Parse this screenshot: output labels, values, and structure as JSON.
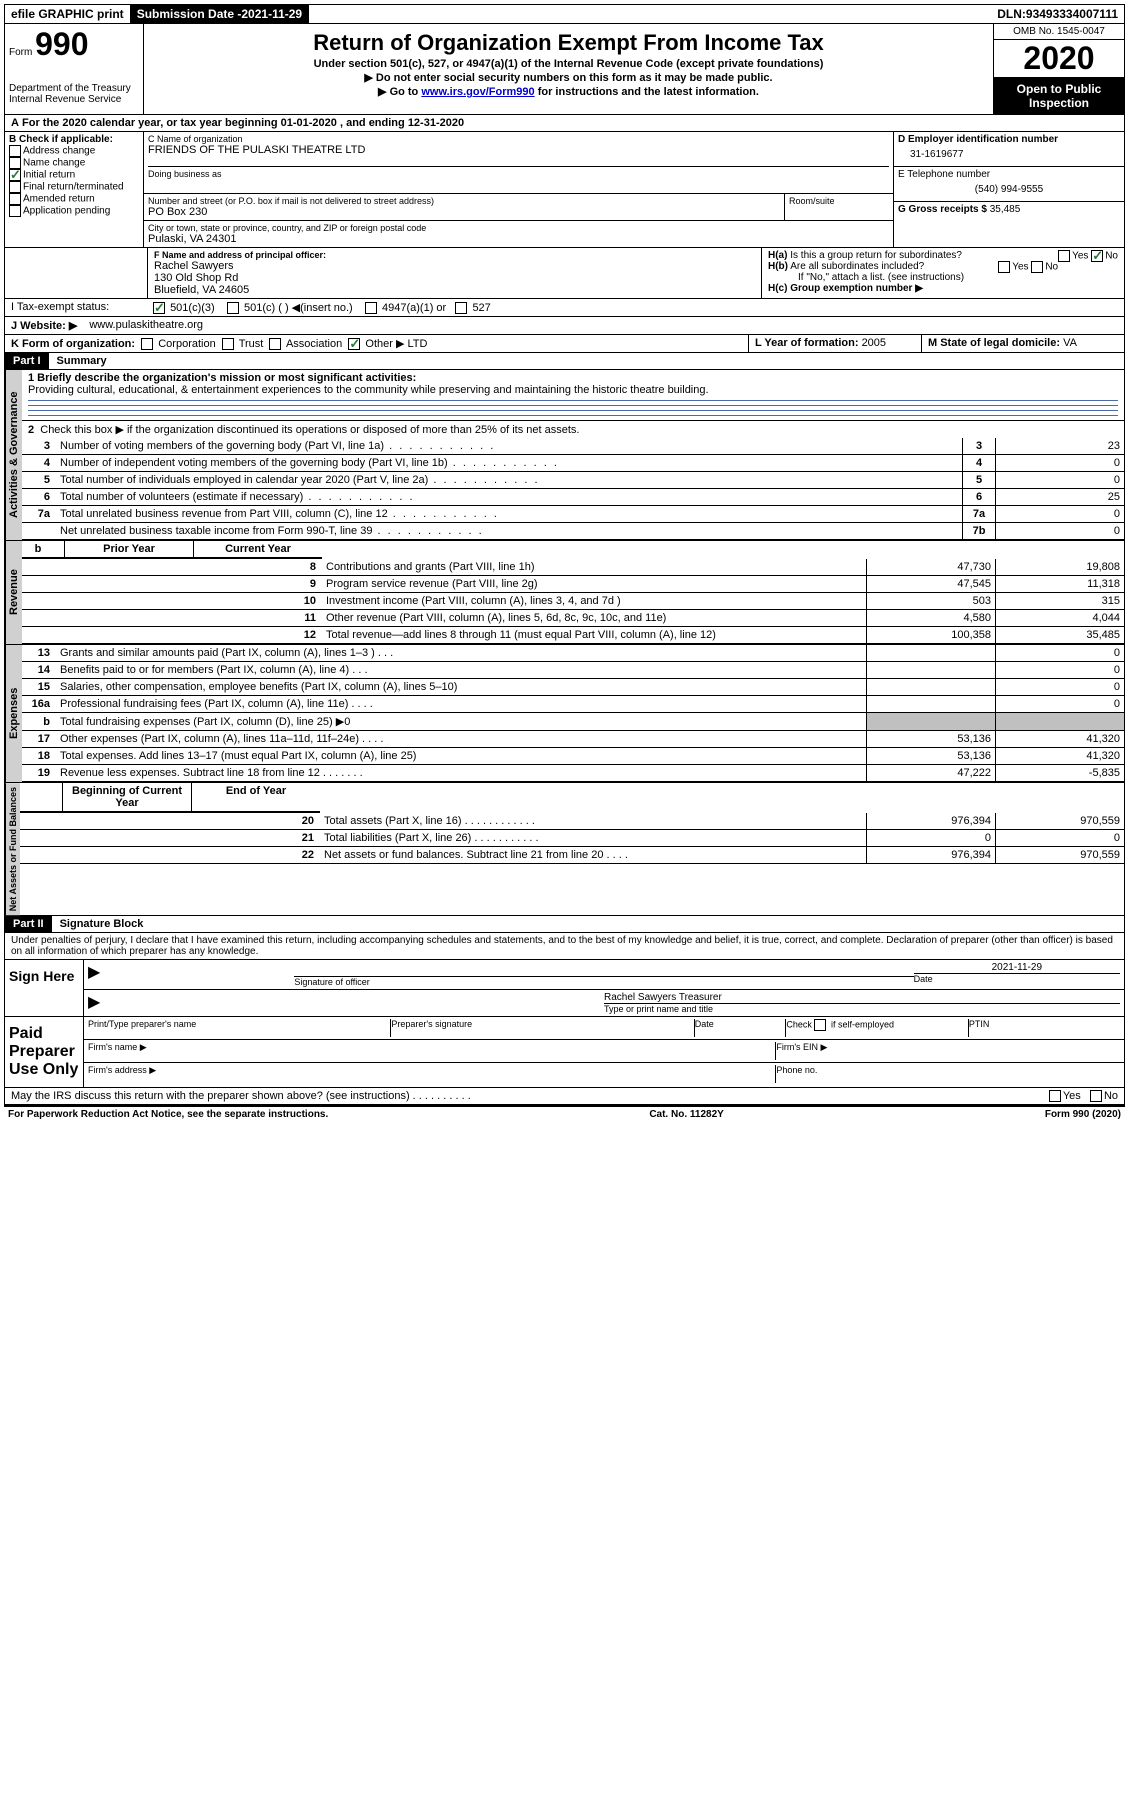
{
  "topbar": {
    "efile": "efile GRAPHIC print",
    "submission_label": "Submission Date - ",
    "submission_date": "2021-11-29",
    "dln_label": "DLN: ",
    "dln": "93493334007111"
  },
  "header": {
    "form_prefix": "Form",
    "form_number": "990",
    "dept": "Department of the Treasury",
    "irs": "Internal Revenue Service",
    "title": "Return of Organization Exempt From Income Tax",
    "sub1": "Under section 501(c), 527, or 4947(a)(1) of the Internal Revenue Code (except private foundations)",
    "sub2": "▶ Do not enter social security numbers on this form as it may be made public.",
    "sub3_pre": "▶ Go to ",
    "sub3_link": "www.irs.gov/Form990",
    "sub3_post": " for instructions and the latest information.",
    "omb": "OMB No. 1545-0047",
    "year": "2020",
    "open": "Open to Public Inspection"
  },
  "rowA": {
    "text_pre": "A",
    "text": " For the 2020 calendar year, or tax year beginning ",
    "begin": "01-01-2020",
    "mid": " , and ending ",
    "end": "12-31-2020"
  },
  "sectionB": {
    "b_label": "B Check if applicable:",
    "opts": [
      "Address change",
      "Name change",
      "Initial return",
      "Final return/terminated",
      "Amended return",
      "Application pending"
    ],
    "checked_index": 2,
    "c_name_label": "C Name of organization",
    "c_name": "FRIENDS OF THE PULASKI THEATRE LTD",
    "dba_label": "Doing business as",
    "dba": "",
    "addr_label": "Number and street (or P.O. box if mail is not delivered to street address)",
    "room_label": "Room/suite",
    "addr": "PO Box 230",
    "city_label": "City or town, state or province, country, and ZIP or foreign postal code",
    "city": "Pulaski, VA  24301",
    "d_label": "D Employer identification number",
    "d_value": "31-1619677",
    "e_label": "E Telephone number",
    "e_value": "(540) 994-9555",
    "g_label": "G Gross receipts $ ",
    "g_value": "35,485"
  },
  "sectionF": {
    "f_label": "F  Name and address of principal officer:",
    "name": "Rachel Sawyers",
    "addr1": "130 Old Shop Rd",
    "addr2": "Bluefield, VA  24605",
    "ha_label": "H(a)  Is this a group return for subordinates?",
    "ha_no_checked": true,
    "hb_label": "H(b)  Are all subordinates included?",
    "hb_note": "If \"No,\" attach a list. (see instructions)",
    "hc_label": "H(c)  Group exemption number ▶"
  },
  "rowI": {
    "label": "I    Tax-exempt status:",
    "opts": [
      "501(c)(3)",
      "501(c) (  ) ◀(insert no.)",
      "4947(a)(1) or",
      "527"
    ],
    "checked_index": 0
  },
  "rowJ": {
    "label": "J    Website: ▶",
    "value": "www.pulaskitheatre.org"
  },
  "rowK": {
    "label": "K Form of organization:",
    "opts": [
      "Corporation",
      "Trust",
      "Association",
      "Other ▶"
    ],
    "checked_index": 3,
    "other_value": "LTD",
    "l_label": "L Year of formation: ",
    "l_value": "2005",
    "m_label": "M State of legal domicile: ",
    "m_value": "VA"
  },
  "part1": {
    "header": "Part I",
    "title": "Summary",
    "mission_label": "1   Briefly describe the organization's mission or most significant activities:",
    "mission": "Providing cultural, educational, & entertainment experiences to the community while preserving and maintaining the historic theatre building.",
    "line2": "Check this box ▶        if the organization discontinued its operations or disposed of more than 25% of its net assets.",
    "tabs": {
      "ag": "Activities & Governance",
      "rev": "Revenue",
      "exp": "Expenses",
      "net": "Net Assets or Fund Balances"
    },
    "col_prior": "Prior Year",
    "col_current": "Current Year",
    "col_begin": "Beginning of Current Year",
    "col_end": "End of Year",
    "ag_rows": [
      {
        "n": "3",
        "t": "Number of voting members of the governing body (Part VI, line 1a)",
        "box": "3",
        "v": "23"
      },
      {
        "n": "4",
        "t": "Number of independent voting members of the governing body (Part VI, line 1b)",
        "box": "4",
        "v": "0"
      },
      {
        "n": "5",
        "t": "Total number of individuals employed in calendar year 2020 (Part V, line 2a)",
        "box": "5",
        "v": "0"
      },
      {
        "n": "6",
        "t": "Total number of volunteers (estimate if necessary)",
        "box": "6",
        "v": "25"
      },
      {
        "n": "7a",
        "t": "Total unrelated business revenue from Part VIII, column (C), line 12",
        "box": "7a",
        "v": "0"
      },
      {
        "n": "",
        "t": "Net unrelated business taxable income from Form 990-T, line 39",
        "box": "7b",
        "v": "0"
      }
    ],
    "rev_rows": [
      {
        "n": "8",
        "t": "Contributions and grants (Part VIII, line 1h)",
        "p": "47,730",
        "c": "19,808"
      },
      {
        "n": "9",
        "t": "Program service revenue (Part VIII, line 2g)",
        "p": "47,545",
        "c": "11,318"
      },
      {
        "n": "10",
        "t": "Investment income (Part VIII, column (A), lines 3, 4, and 7d )",
        "p": "503",
        "c": "315"
      },
      {
        "n": "11",
        "t": "Other revenue (Part VIII, column (A), lines 5, 6d, 8c, 9c, 10c, and 11e)",
        "p": "4,580",
        "c": "4,044"
      },
      {
        "n": "12",
        "t": "Total revenue—add lines 8 through 11 (must equal Part VIII, column (A), line 12)",
        "p": "100,358",
        "c": "35,485"
      }
    ],
    "exp_rows": [
      {
        "n": "13",
        "t": "Grants and similar amounts paid (Part IX, column (A), lines 1–3 )   .   .   .",
        "p": "",
        "c": "0"
      },
      {
        "n": "14",
        "t": "Benefits paid to or for members (Part IX, column (A), line 4)   .   .   .",
        "p": "",
        "c": "0"
      },
      {
        "n": "15",
        "t": "Salaries, other compensation, employee benefits (Part IX, column (A), lines 5–10)",
        "p": "",
        "c": "0"
      },
      {
        "n": "16a",
        "t": "Professional fundraising fees (Part IX, column (A), line 11e)   .   .   .   .",
        "p": "",
        "c": "0"
      },
      {
        "n": "b",
        "t": "Total fundraising expenses (Part IX, column (D), line 25) ▶0",
        "p": "GRAY",
        "c": "GRAY"
      },
      {
        "n": "17",
        "t": "Other expenses (Part IX, column (A), lines 11a–11d, 11f–24e)   .   .   .   .",
        "p": "53,136",
        "c": "41,320"
      },
      {
        "n": "18",
        "t": "Total expenses. Add lines 13–17 (must equal Part IX, column (A), line 25)",
        "p": "53,136",
        "c": "41,320"
      },
      {
        "n": "19",
        "t": "Revenue less expenses. Subtract line 18 from line 12   .   .   .   .   .   .   .",
        "p": "47,222",
        "c": "-5,835"
      }
    ],
    "net_rows": [
      {
        "n": "20",
        "t": "Total assets (Part X, line 16)   .   .   .   .   .   .   .   .   .   .   .   .",
        "p": "976,394",
        "c": "970,559"
      },
      {
        "n": "21",
        "t": "Total liabilities (Part X, line 26)   .   .   .   .   .   .   .   .   .   .   .",
        "p": "0",
        "c": "0"
      },
      {
        "n": "22",
        "t": "Net assets or fund balances. Subtract line 21 from line 20   .   .   .   .",
        "p": "976,394",
        "c": "970,559"
      }
    ]
  },
  "part2": {
    "header": "Part II",
    "title": "Signature Block",
    "perjury": "Under penalties of perjury, I declare that I have examined this return, including accompanying schedules and statements, and to the best of my knowledge and belief, it is true, correct, and complete. Declaration of preparer (other than officer) is based on all information of which preparer has any knowledge.",
    "sign_here": "Sign Here",
    "sig_officer": "Signature of officer",
    "date_label": "Date",
    "sig_date": "2021-11-29",
    "name_title": "Rachel Sawyers  Treasurer",
    "name_title_label": "Type or print name and title",
    "paid": "Paid Preparer Use Only",
    "prep_name": "Print/Type preparer's name",
    "prep_sig": "Preparer's signature",
    "prep_date": "Date",
    "check_self": "Check        if self-employed",
    "ptin": "PTIN",
    "firm_name": "Firm's name    ▶",
    "firm_ein": "Firm's EIN ▶",
    "firm_addr": "Firm's address ▶",
    "phone": "Phone no.",
    "discuss": "May the IRS discuss this return with the preparer shown above? (see instructions)   .   .   .   .   .   .   .   .   .   .",
    "yes": "Yes",
    "no": "No"
  },
  "footer": {
    "pra": "For Paperwork Reduction Act Notice, see the separate instructions.",
    "cat": "Cat. No. 11282Y",
    "form": "Form 990 (2020)"
  }
}
